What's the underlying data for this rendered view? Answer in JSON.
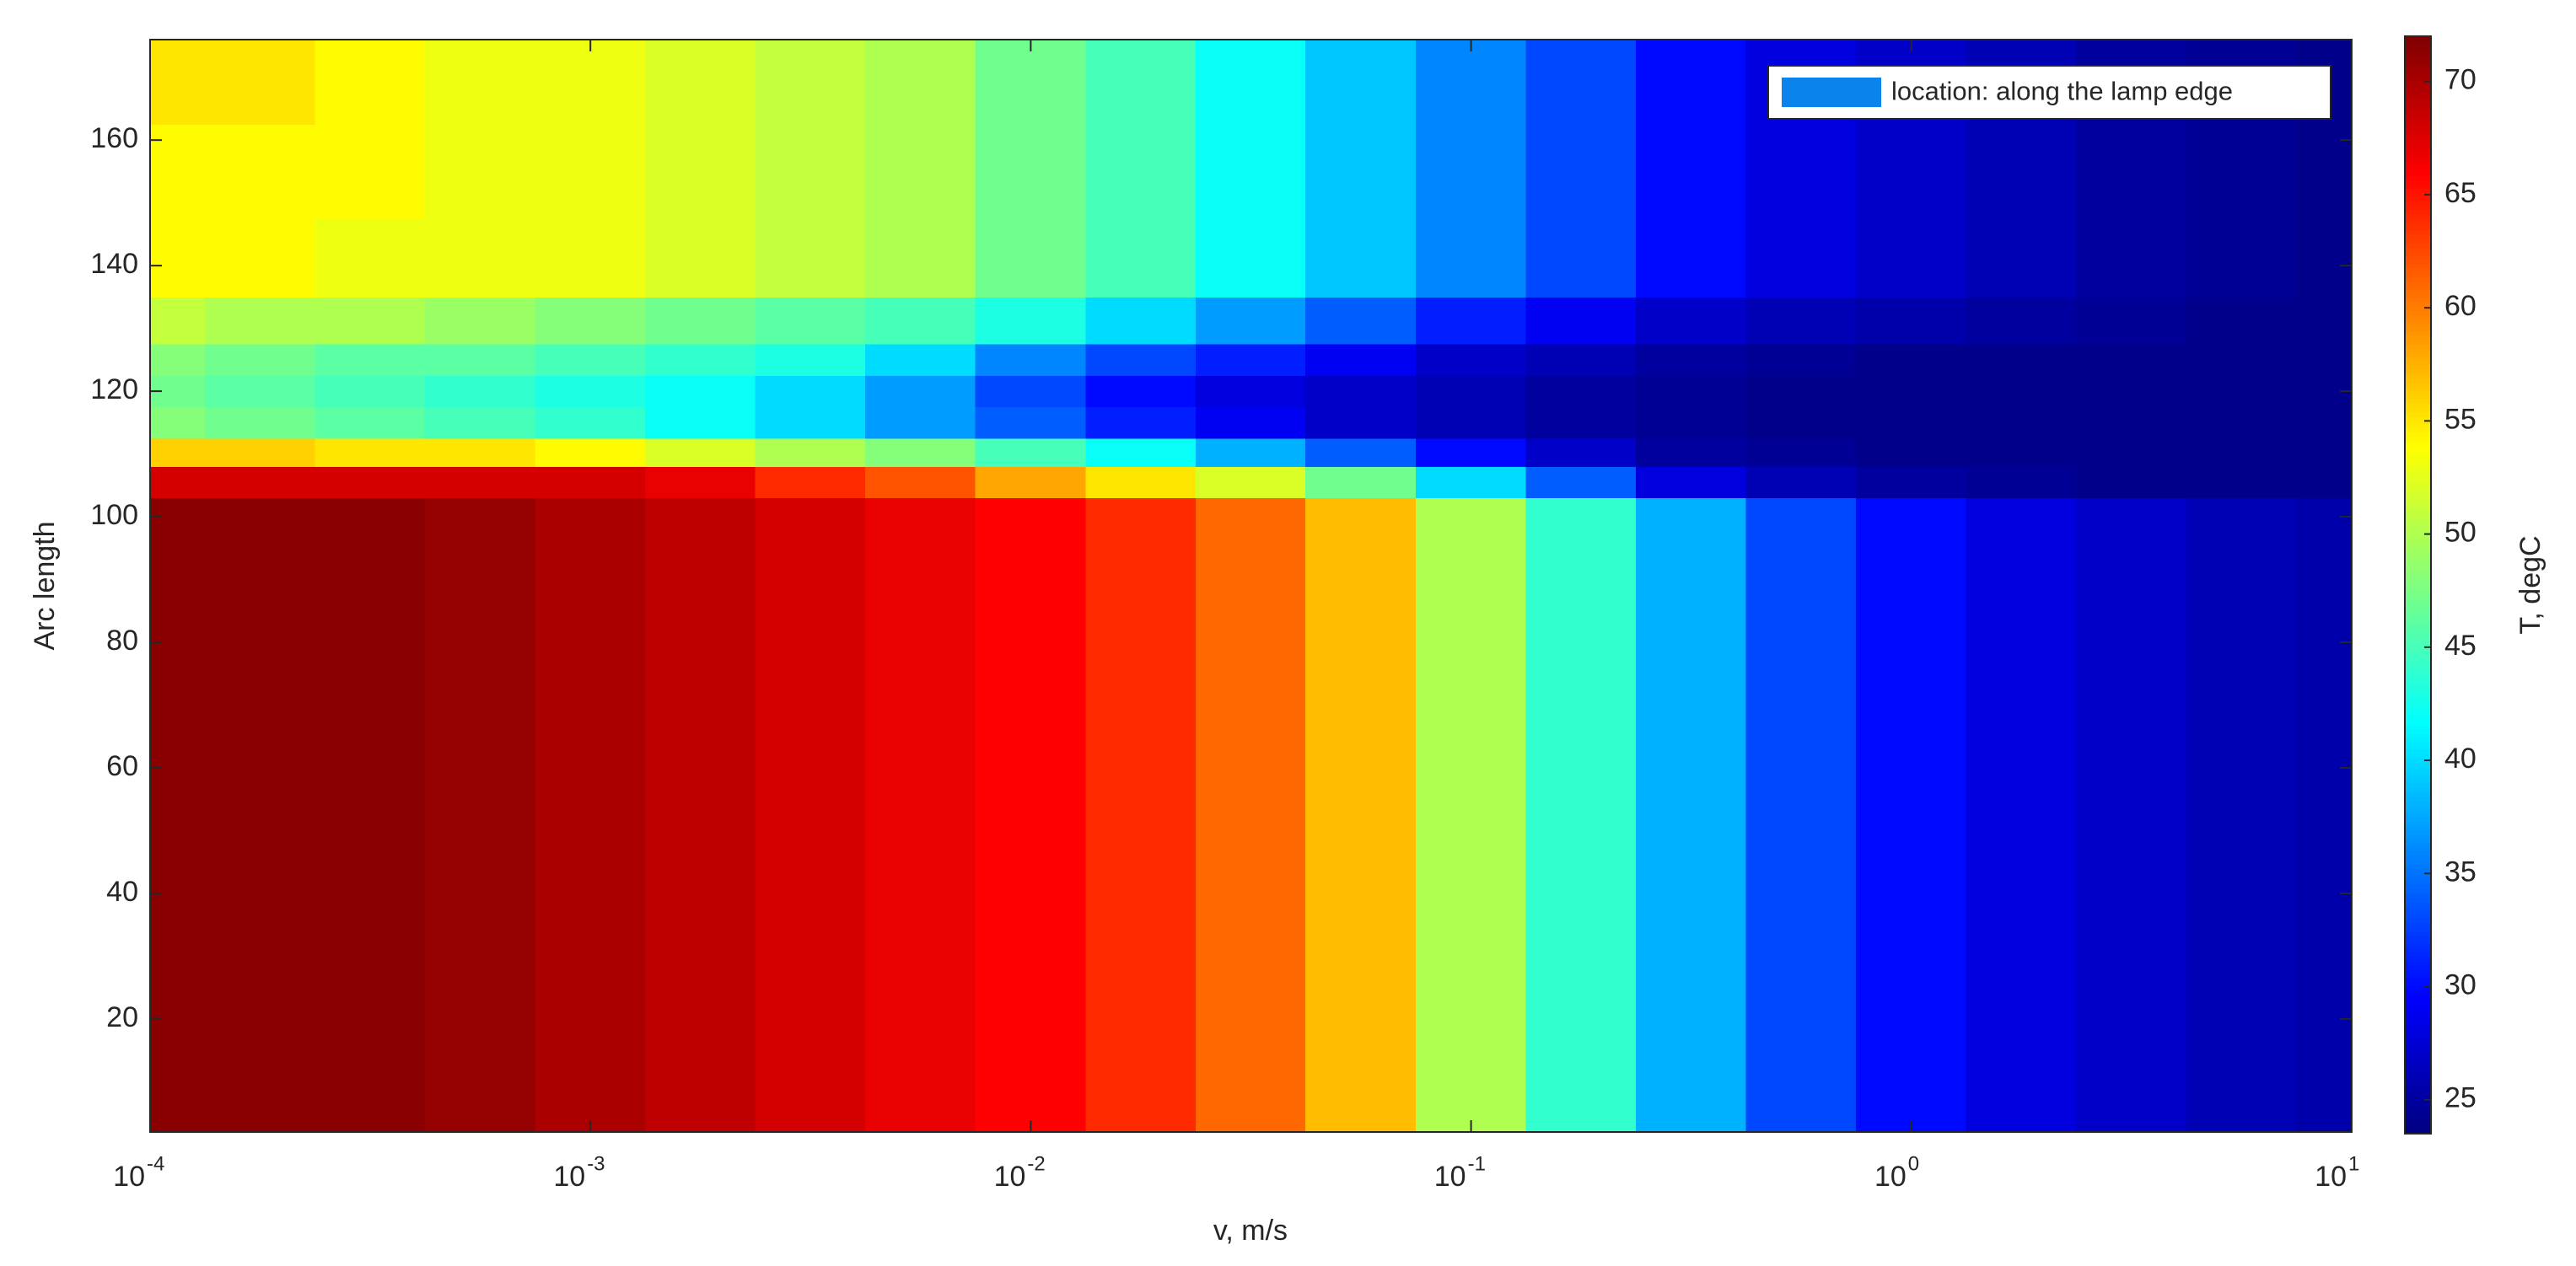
{
  "chart_data": {
    "type": "contour",
    "x_label": "v, m/s",
    "y_label": "Arc length",
    "colorbar_label": "T, degC",
    "colormap": "jet",
    "x_scale": "log",
    "legend_label": "location: along the lamp edge",
    "legend_color": "#0a84ec",
    "legend_position": "upper right",
    "xlim": [
      0.0001,
      10
    ],
    "xticks": [
      {
        "value": 0.0001,
        "label": "10",
        "exponent": "-4"
      },
      {
        "value": 0.001,
        "label": "10",
        "exponent": "-3"
      },
      {
        "value": 0.01,
        "label": "10",
        "exponent": "-2"
      },
      {
        "value": 0.1,
        "label": "10",
        "exponent": "-1"
      },
      {
        "value": 1,
        "label": "10",
        "exponent": "0"
      },
      {
        "value": 10,
        "label": "10",
        "exponent": "1"
      }
    ],
    "ylim": [
      2,
      176
    ],
    "yticks": [
      20,
      40,
      60,
      80,
      100,
      120,
      140,
      160
    ],
    "clim": [
      23.5,
      72
    ],
    "cticks": [
      25,
      30,
      35,
      40,
      45,
      50,
      55,
      60,
      65,
      70
    ],
    "x": [
      0.0001,
      0.000178,
      0.000316,
      0.000562,
      0.001,
      0.00178,
      0.00316,
      0.00562,
      0.01,
      0.0178,
      0.0316,
      0.0562,
      0.1,
      0.178,
      0.316,
      0.562,
      1,
      1.78,
      3.16,
      5.62,
      10
    ],
    "y": [
      5,
      25,
      45,
      65,
      85,
      100,
      106,
      110,
      115,
      120,
      125,
      130,
      140,
      155,
      170
    ],
    "z": [
      [
        71.5,
        71.5,
        71.5,
        71,
        70,
        69,
        68,
        67,
        66,
        64,
        61,
        57,
        50,
        44,
        38,
        33,
        30,
        28,
        27,
        26,
        25.5
      ],
      [
        71.5,
        71.5,
        71.5,
        71,
        70,
        69,
        68,
        67,
        66,
        64,
        61,
        57,
        50,
        44,
        38,
        33,
        30,
        28,
        27,
        26,
        25.5
      ],
      [
        71.5,
        71.5,
        71.5,
        71,
        70,
        69,
        68,
        67,
        66,
        64,
        61,
        57,
        50,
        44,
        38,
        33,
        30,
        28,
        27,
        26,
        25.5
      ],
      [
        71.5,
        71.5,
        71.5,
        71,
        70,
        69,
        68,
        67,
        66,
        64,
        61,
        57,
        50,
        44,
        38,
        33,
        30,
        28,
        27,
        26,
        25.5
      ],
      [
        71.5,
        71.5,
        71.5,
        71,
        70,
        69,
        68,
        67,
        66,
        64,
        61,
        57,
        50,
        44,
        38,
        33,
        30,
        28,
        27,
        26,
        25.5
      ],
      [
        71.5,
        71.5,
        71.5,
        71,
        70,
        69,
        68,
        67,
        66,
        64,
        61,
        57,
        50,
        44,
        38,
        33,
        30,
        28,
        27,
        26,
        25.5
      ],
      [
        68,
        68,
        68,
        68,
        68,
        67,
        64,
        62,
        58,
        55,
        52,
        47,
        40,
        34,
        28,
        26,
        25,
        24.5,
        24,
        24,
        24
      ],
      [
        56,
        56,
        55,
        55,
        54,
        52,
        50,
        48,
        45,
        42,
        38,
        34,
        30,
        27,
        25,
        24.5,
        24,
        24,
        24,
        24,
        24
      ],
      [
        48,
        47,
        46,
        45,
        44,
        42,
        40,
        37,
        34,
        31,
        29,
        27,
        26,
        25,
        24.5,
        24,
        24,
        24,
        24,
        24,
        24
      ],
      [
        47,
        46,
        45,
        44,
        43,
        42,
        40,
        37,
        33,
        30,
        28,
        27,
        26,
        25,
        24.5,
        24,
        24,
        24,
        24,
        24,
        24
      ],
      [
        48,
        47,
        46,
        46,
        45,
        44,
        43,
        40,
        36,
        33,
        31,
        29,
        27,
        26,
        25,
        24.5,
        24,
        24,
        24,
        24,
        24
      ],
      [
        51,
        50,
        50,
        49,
        48,
        47,
        46,
        45,
        43,
        40,
        37,
        34,
        31,
        29,
        27,
        26,
        25.5,
        25,
        24.5,
        24,
        24
      ],
      [
        54,
        54,
        53,
        53,
        53,
        52,
        51,
        50,
        47,
        45,
        42,
        39,
        36,
        33,
        30,
        28,
        27,
        26,
        25,
        24.5,
        24
      ],
      [
        54,
        54,
        54,
        53,
        53,
        52,
        51,
        50,
        47,
        45,
        42,
        39,
        36,
        33,
        30,
        28,
        27,
        26,
        25,
        24.5,
        24
      ],
      [
        55,
        55,
        54,
        53,
        53,
        52,
        51,
        50,
        47,
        45,
        42,
        39,
        36,
        33,
        30,
        28,
        27,
        26,
        25,
        24.5,
        24
      ]
    ]
  }
}
